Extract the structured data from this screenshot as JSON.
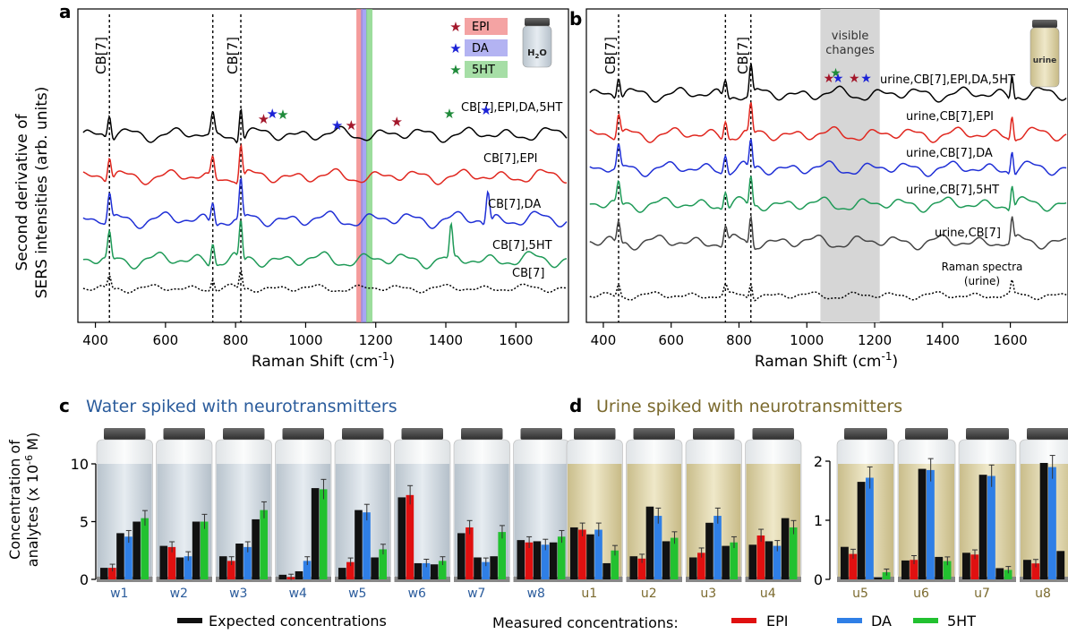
{
  "panels": {
    "a": {
      "letter": "a"
    },
    "b": {
      "letter": "b",
      "shade_label_1": "visible",
      "shade_label_2": "changes",
      "vial_label": "urine"
    },
    "c": {
      "letter": "c",
      "title": "Water spiked with neurotransmitters"
    },
    "d": {
      "letter": "d",
      "title": "Urine spiked with neurotransmitters"
    }
  },
  "legend_bottom": {
    "expected": "Expected concentrations",
    "measured_prefix": "Measured concentrations:",
    "epi": "EPI",
    "da": "DA",
    "ht": "5HT"
  },
  "colors": {
    "expected": "#111111",
    "epi": "#e01010",
    "da": "#2f7fe6",
    "ht": "#22c130",
    "water_text": "#2b5c9c",
    "urine_text": "#7b6a2e",
    "spec_black": "#000000",
    "spec_red": "#e0261e",
    "spec_blue": "#1f2fd6",
    "spec_green": "#1e9a57",
    "spec_gray": "#444444"
  },
  "chart_data": [
    {
      "type": "line",
      "panel": "a",
      "title": "",
      "xlabel": "Raman Shift (cm-1)",
      "ylabel": "Second derivative of SERS intensities (arb. units)",
      "xlim": [
        350,
        1750
      ],
      "xticks": [
        400,
        600,
        800,
        1000,
        1200,
        1400,
        1600
      ],
      "series": [
        {
          "name": "CB[7],EPI,DA,5HT"
        },
        {
          "name": "CB[7],EPI"
        },
        {
          "name": "CB[7],DA"
        },
        {
          "name": "CB[7],5HT"
        },
        {
          "name": "CB[7]"
        }
      ],
      "reference_lines": [
        {
          "x": 440,
          "label": "CB[7]"
        },
        {
          "x": 735,
          "label": ""
        },
        {
          "x": 815,
          "label": "CB[7]"
        }
      ],
      "legend": [
        "EPI",
        "DA",
        "5HT"
      ],
      "highlight_bands": [
        {
          "x": 1155,
          "label": "EPI"
        },
        {
          "x": 1168,
          "label": "DA"
        },
        {
          "x": 1183,
          "label": "5HT"
        }
      ],
      "markers": [
        {
          "x": 880,
          "label": "EPI"
        },
        {
          "x": 905,
          "label": "DA"
        },
        {
          "x": 935,
          "label": "5HT"
        },
        {
          "x": 1090,
          "label": "DA"
        },
        {
          "x": 1130,
          "label": "EPI"
        },
        {
          "x": 1260,
          "label": "EPI"
        },
        {
          "x": 1410,
          "label": "5HT"
        },
        {
          "x": 1515,
          "label": "DA"
        }
      ],
      "vial_label": "H2O"
    },
    {
      "type": "line",
      "panel": "b",
      "title": "",
      "xlabel": "Raman Shift (cm-1)",
      "xlim": [
        350,
        1770
      ],
      "xticks": [
        400,
        600,
        800,
        1000,
        1200,
        1400,
        1600
      ],
      "series": [
        {
          "name": "urine,CB[7],EPI,DA,5HT"
        },
        {
          "name": "urine,CB[7],EPI"
        },
        {
          "name": "urine,CB[7],DA"
        },
        {
          "name": "urine,CB[7],5HT"
        },
        {
          "name": "urine,CB[7]"
        },
        {
          "name": "Raman spectra (urine)"
        }
      ],
      "reference_lines": [
        {
          "x": 445,
          "label": "CB[7]"
        },
        {
          "x": 760,
          "label": ""
        },
        {
          "x": 835,
          "label": "CB[7]"
        }
      ],
      "shaded_region": [
        1040,
        1215
      ],
      "markers": [
        {
          "x": 1065,
          "label": "EPI"
        },
        {
          "x": 1085,
          "label": "5HT"
        },
        {
          "x": 1092,
          "label": "DA"
        },
        {
          "x": 1140,
          "label": "EPI"
        },
        {
          "x": 1175,
          "label": "DA"
        }
      ]
    },
    {
      "type": "bar",
      "panel": "c",
      "title": "Water spiked with neurotransmitters",
      "ylabel": "Concentration of analytes (x 10-6 M)",
      "ylim": [
        0,
        10
      ],
      "yticks": [
        0,
        5,
        10
      ],
      "categories": [
        "w1",
        "w2",
        "w3",
        "w4",
        "w5",
        "w6",
        "w7",
        "w8"
      ],
      "series": [
        {
          "name": "EPI",
          "expected": [
            1.0,
            2.9,
            2.0,
            0.4,
            1.0,
            7.1,
            4.0,
            3.4
          ],
          "measured": [
            1.0,
            2.8,
            1.6,
            0.2,
            1.5,
            7.3,
            4.5,
            3.2
          ]
        },
        {
          "name": "DA",
          "expected": [
            4.0,
            1.9,
            3.1,
            0.7,
            6.0,
            1.4,
            1.9,
            3.3
          ],
          "measured": [
            3.7,
            2.0,
            2.8,
            1.6,
            5.8,
            1.4,
            1.5,
            3.0
          ]
        },
        {
          "name": "5HT",
          "expected": [
            5.0,
            5.0,
            5.2,
            7.9,
            1.9,
            1.3,
            2.0,
            3.2
          ],
          "measured": [
            5.3,
            5.0,
            6.0,
            7.8,
            2.6,
            1.6,
            4.1,
            3.7
          ]
        }
      ]
    },
    {
      "type": "bar",
      "panel": "d",
      "title": "Urine spiked with neurotransmitters",
      "ylim": [
        0,
        10
      ],
      "yticks": [
        0,
        5,
        10
      ],
      "categories": [
        "u1",
        "u2",
        "u3",
        "u4"
      ],
      "series": [
        {
          "name": "EPI",
          "expected": [
            4.5,
            2.0,
            1.9,
            3.0
          ],
          "measured": [
            4.3,
            1.8,
            2.3,
            3.8
          ]
        },
        {
          "name": "DA",
          "expected": [
            3.9,
            6.3,
            4.9,
            3.3
          ],
          "measured": [
            4.3,
            5.5,
            5.5,
            2.9
          ]
        },
        {
          "name": "5HT",
          "expected": [
            1.4,
            3.3,
            2.9,
            5.3
          ],
          "measured": [
            2.5,
            3.6,
            3.2,
            4.5
          ]
        }
      ]
    },
    {
      "type": "bar",
      "panel": "d-inset",
      "ylim": [
        0,
        2
      ],
      "yticks": [
        0,
        1,
        2
      ],
      "categories": [
        "u5",
        "u6",
        "u7",
        "u8"
      ],
      "series": [
        {
          "name": "EPI",
          "expected": [
            0.55,
            0.32,
            0.45,
            0.33
          ],
          "measured": [
            0.43,
            0.33,
            0.42,
            0.27
          ]
        },
        {
          "name": "DA",
          "expected": [
            1.65,
            1.87,
            1.77,
            1.97
          ],
          "measured": [
            1.72,
            1.85,
            1.75,
            1.9
          ]
        },
        {
          "name": "5HT",
          "expected": [
            0.03,
            0.38,
            0.19,
            0.48
          ],
          "measured": [
            0.12,
            0.31,
            0.16,
            0.0
          ]
        }
      ]
    }
  ]
}
